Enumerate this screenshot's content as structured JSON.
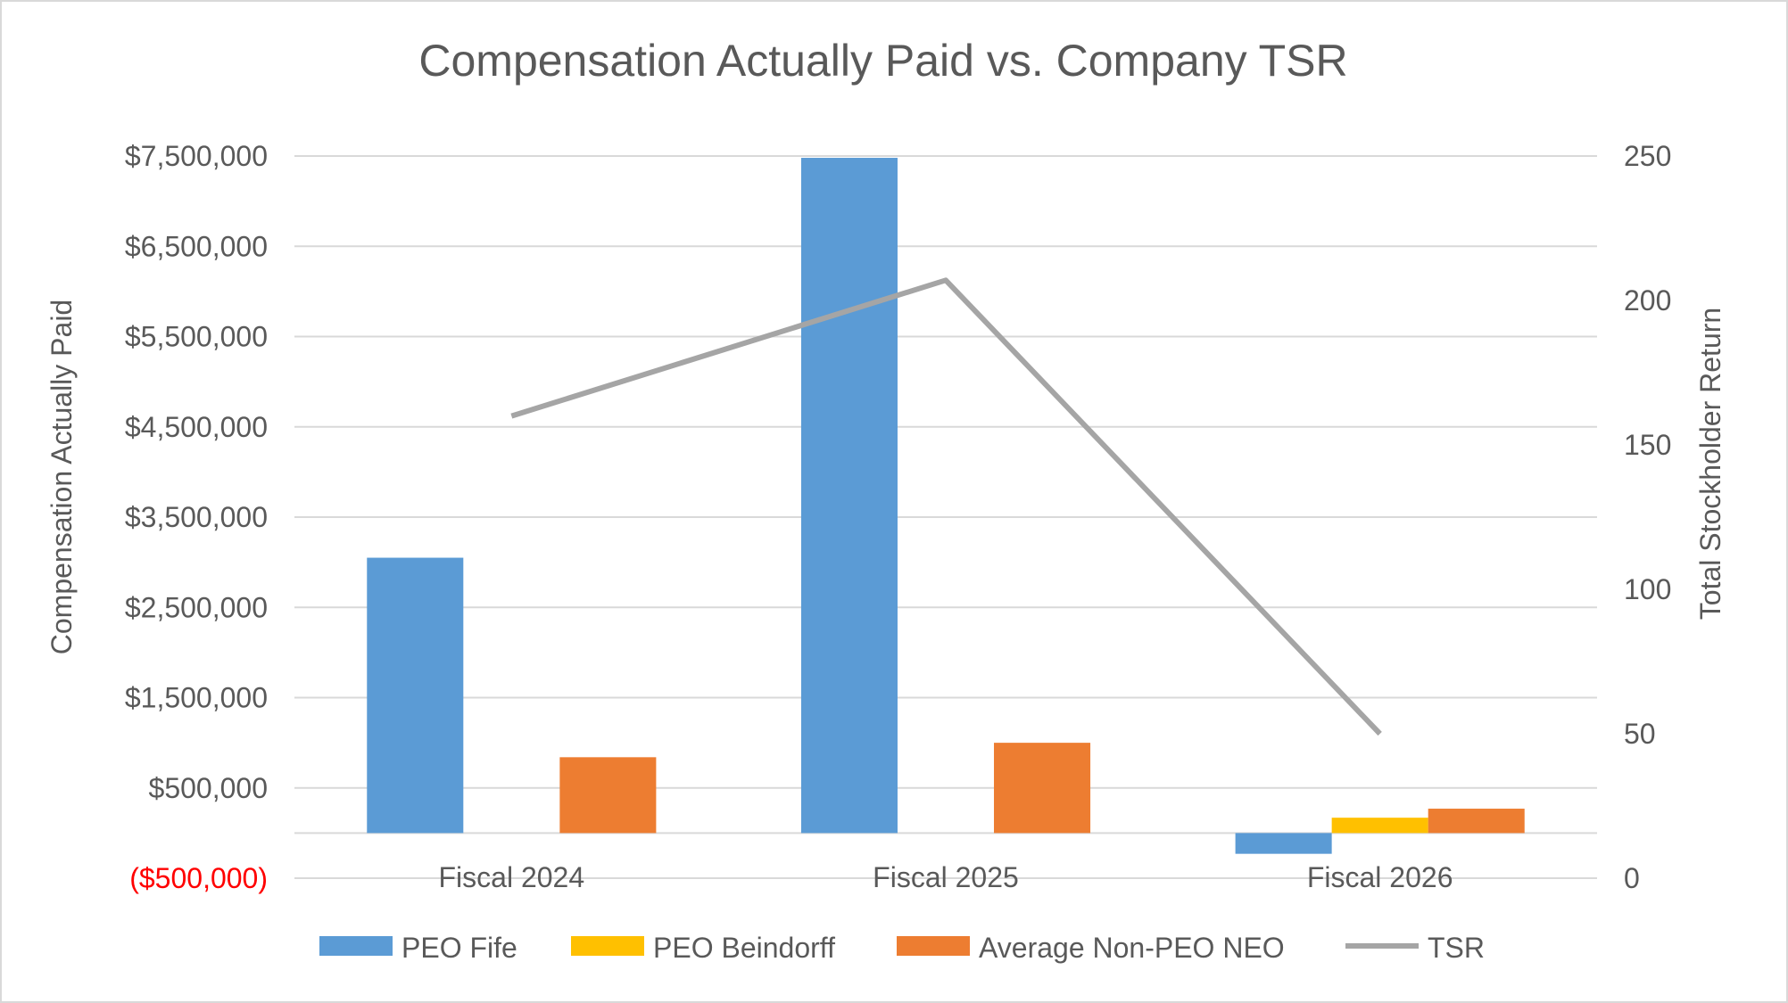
{
  "chart_data": {
    "type": "bar",
    "title": "Compensation Actually Paid vs. Company TSR",
    "ylabel": "Compensation Actually Paid",
    "y2label": "Total Stockholder Return",
    "categories": [
      "Fiscal 2024",
      "Fiscal 2025",
      "Fiscal 2026"
    ],
    "ylim": [
      -500000,
      7500000
    ],
    "y2lim": [
      0,
      250
    ],
    "y_ticks": [
      {
        "value": -500000,
        "label": "($500,000)",
        "color": "#ff0000"
      },
      {
        "value": 500000,
        "label": "$500,000"
      },
      {
        "value": 1500000,
        "label": "$1,500,000"
      },
      {
        "value": 2500000,
        "label": "$2,500,000"
      },
      {
        "value": 3500000,
        "label": "$3,500,000"
      },
      {
        "value": 4500000,
        "label": "$4,500,000"
      },
      {
        "value": 5500000,
        "label": "$5,500,000"
      },
      {
        "value": 6500000,
        "label": "$6,500,000"
      },
      {
        "value": 7500000,
        "label": "$7,500,000"
      }
    ],
    "y2_ticks": [
      {
        "value": 0,
        "label": "0"
      },
      {
        "value": 50,
        "label": "50"
      },
      {
        "value": 100,
        "label": "100"
      },
      {
        "value": 150,
        "label": "150"
      },
      {
        "value": 200,
        "label": "200"
      },
      {
        "value": 250,
        "label": "250"
      }
    ],
    "series": [
      {
        "name": "PEO Fife",
        "kind": "bar",
        "axis": "left",
        "color": "#5b9bd5",
        "values": [
          3050000,
          7480000,
          -230000
        ]
      },
      {
        "name": "PEO Beindorff",
        "kind": "bar",
        "axis": "left",
        "color": "#ffc000",
        "values": [
          null,
          null,
          170000
        ]
      },
      {
        "name": "Average Non-PEO NEO",
        "kind": "bar",
        "axis": "left",
        "color": "#ed7d31",
        "values": [
          840000,
          1000000,
          270000
        ]
      },
      {
        "name": "TSR",
        "kind": "line",
        "axis": "right",
        "color": "#a5a5a5",
        "values": [
          160,
          207,
          50
        ]
      }
    ],
    "grid": true,
    "legend_position": "bottom"
  }
}
